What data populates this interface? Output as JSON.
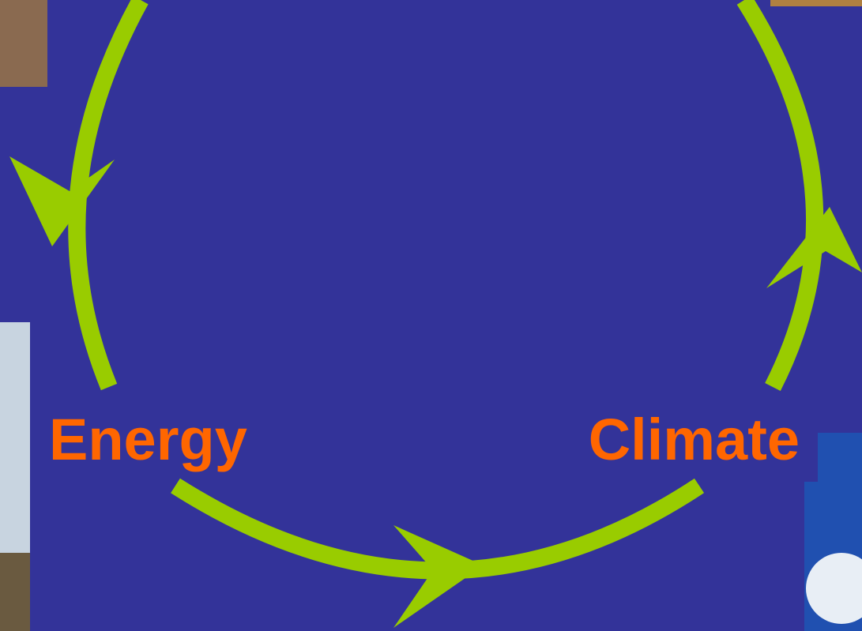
{
  "nodes": [
    {
      "label": "Energy"
    },
    {
      "label": "Climate"
    }
  ]
}
